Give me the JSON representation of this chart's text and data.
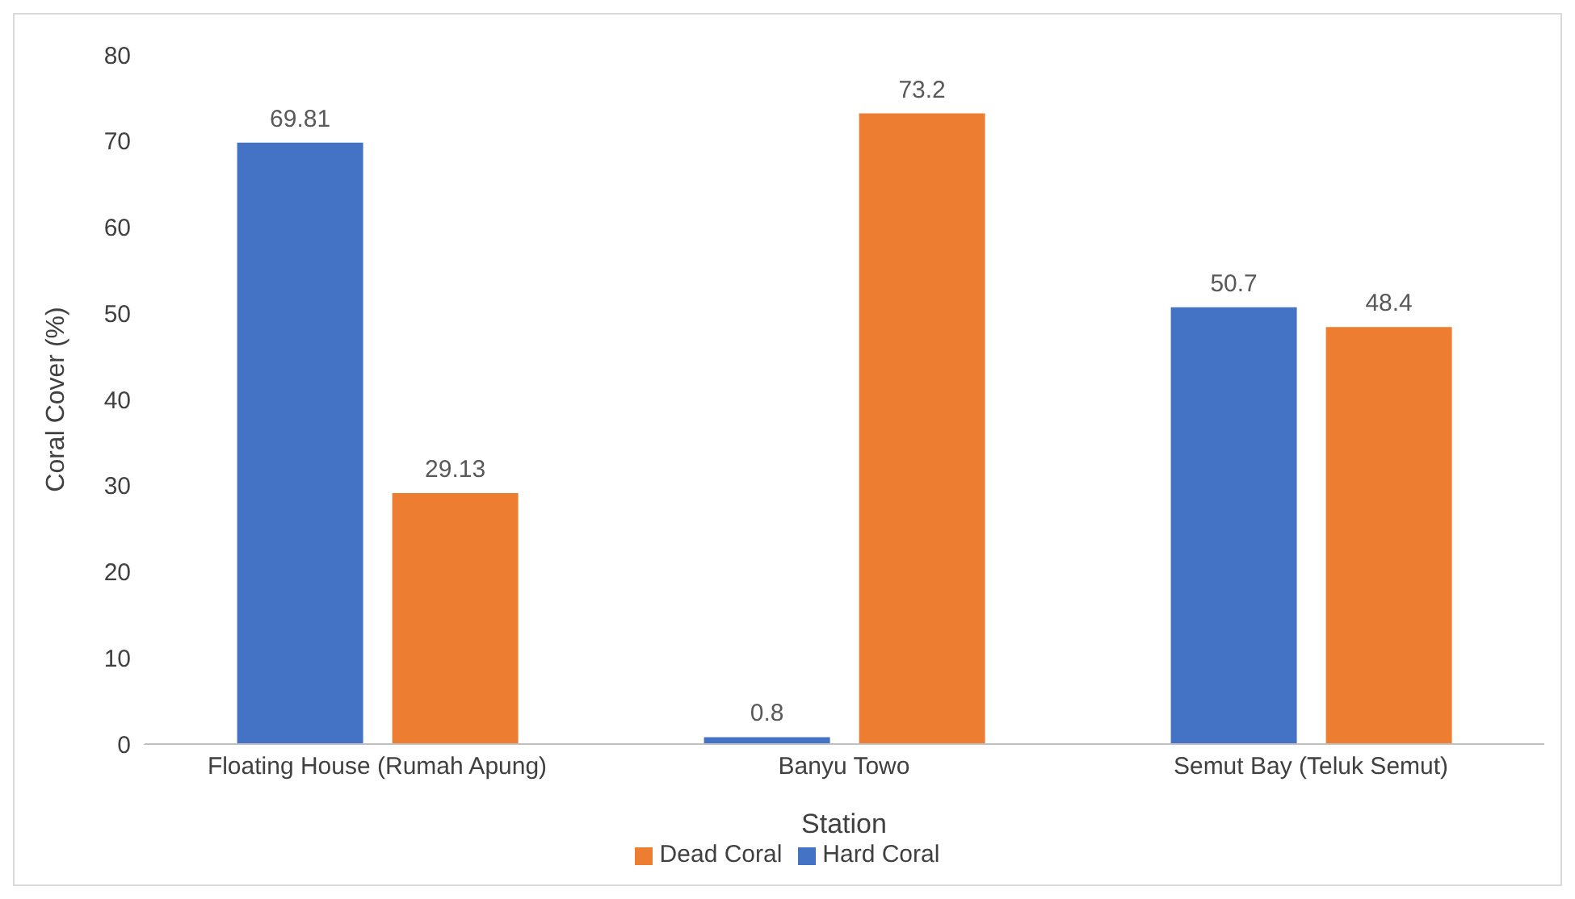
{
  "chart_data": {
    "type": "bar",
    "xlabel": "Station",
    "ylabel": "Coral Cover (%)",
    "categories": [
      "Floating House (Rumah Apung)",
      "Banyu Towo",
      "Semut Bay (Teluk Semut)"
    ],
    "series": [
      {
        "name": "Hard Coral",
        "color": "#4472c4",
        "values": [
          69.81,
          0.8,
          50.7
        ]
      },
      {
        "name": "Dead Coral",
        "color": "#ed7d31",
        "values": [
          29.13,
          73.2,
          48.4
        ]
      }
    ],
    "ylim": [
      0,
      80
    ],
    "yticks": [
      0,
      10,
      20,
      30,
      40,
      50,
      60,
      70,
      80
    ],
    "grid": false,
    "legend": "bottom",
    "data_labels": true
  }
}
